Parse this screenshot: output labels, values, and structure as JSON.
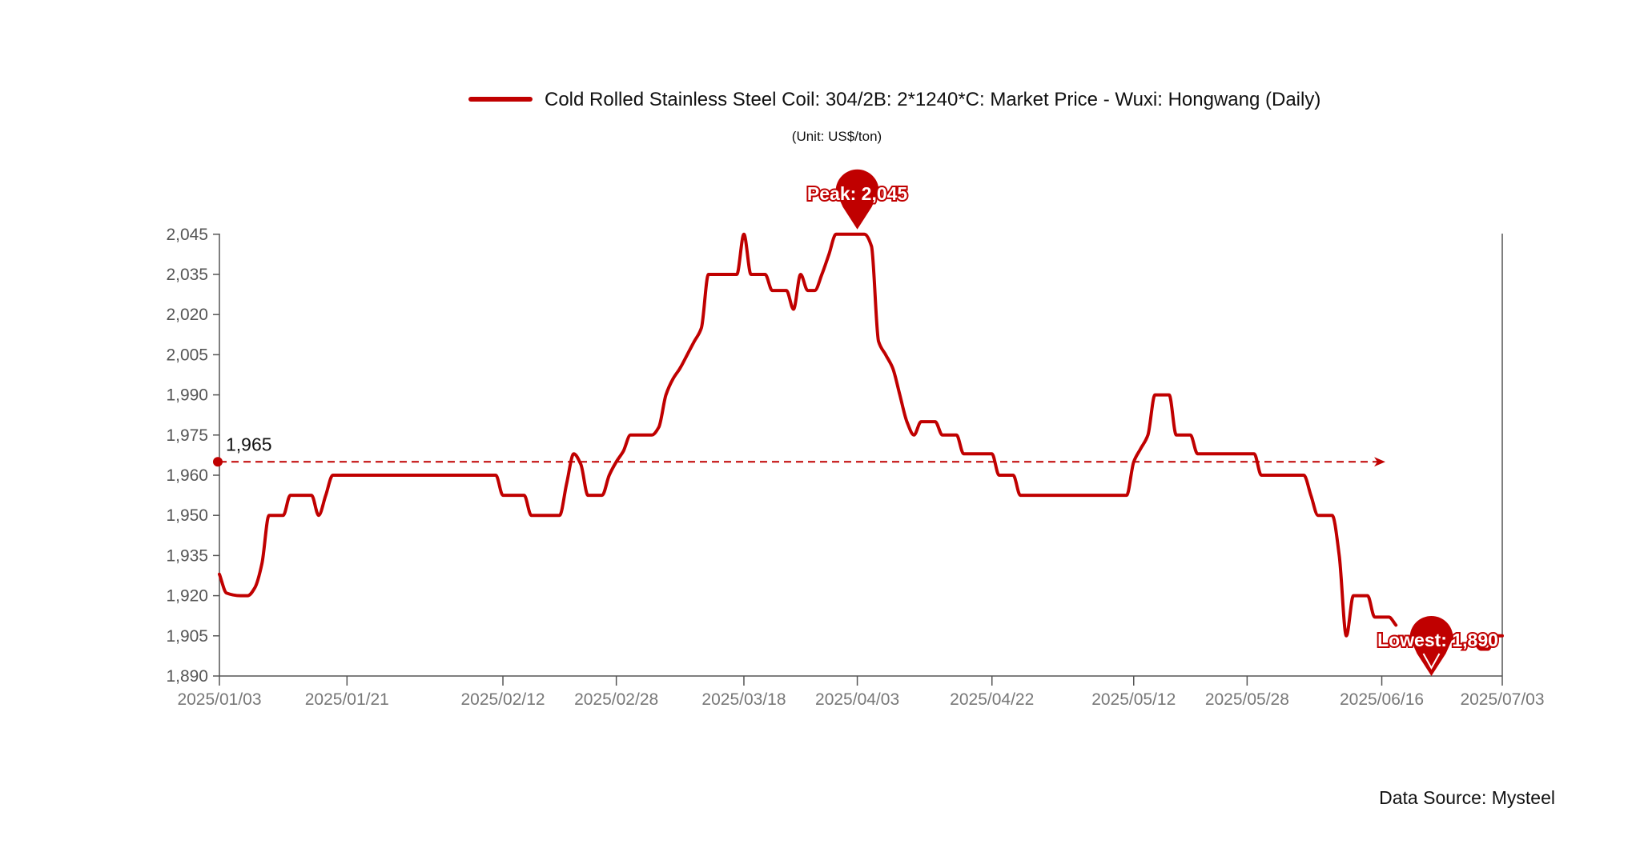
{
  "chart_data": {
    "type": "line",
    "series": [
      {
        "name": "Cold Rolled Stainless Steel Coil: 304/2B: 2*1240*C: Market Price - Wuxi: Hongwang (Daily)",
        "color": "#c00000",
        "points": [
          [
            "2025-01-03",
            1928
          ],
          [
            "2025-01-04",
            1921
          ],
          [
            "2025-01-06",
            1920
          ],
          [
            "2025-01-07",
            1920
          ],
          [
            "2025-01-08",
            1923
          ],
          [
            "2025-01-09",
            1932
          ],
          [
            "2025-01-10",
            1950
          ],
          [
            "2025-01-11",
            1950
          ],
          [
            "2025-01-12",
            1950
          ],
          [
            "2025-01-13",
            1955
          ],
          [
            "2025-01-14",
            1955
          ],
          [
            "2025-01-15",
            1955
          ],
          [
            "2025-01-16",
            1955
          ],
          [
            "2025-01-17",
            1950
          ],
          [
            "2025-01-18",
            1955
          ],
          [
            "2025-01-19",
            1960
          ],
          [
            "2025-01-20",
            1960
          ],
          [
            "2025-01-21",
            1960
          ],
          [
            "2025-01-24",
            1960
          ],
          [
            "2025-01-28",
            1960
          ],
          [
            "2025-02-02",
            1960
          ],
          [
            "2025-02-07",
            1960
          ],
          [
            "2025-02-10",
            1960
          ],
          [
            "2025-02-11",
            1960
          ],
          [
            "2025-02-12",
            1955
          ],
          [
            "2025-02-13",
            1955
          ],
          [
            "2025-02-14",
            1955
          ],
          [
            "2025-02-15",
            1955
          ],
          [
            "2025-02-16",
            1950
          ],
          [
            "2025-02-18",
            1950
          ],
          [
            "2025-02-19",
            1950
          ],
          [
            "2025-02-20",
            1950
          ],
          [
            "2025-02-21",
            1958
          ],
          [
            "2025-02-22",
            1968
          ],
          [
            "2025-02-23",
            1964
          ],
          [
            "2025-02-24",
            1955
          ],
          [
            "2025-02-25",
            1955
          ],
          [
            "2025-02-26",
            1955
          ],
          [
            "2025-02-27",
            1960
          ],
          [
            "2025-02-28",
            1965
          ],
          [
            "2025-03-01",
            1969
          ],
          [
            "2025-03-02",
            1975
          ],
          [
            "2025-03-03",
            1975
          ],
          [
            "2025-03-04",
            1975
          ],
          [
            "2025-03-05",
            1975
          ],
          [
            "2025-03-06",
            1978
          ],
          [
            "2025-03-07",
            1990
          ],
          [
            "2025-03-08",
            1996
          ],
          [
            "2025-03-09",
            2000
          ],
          [
            "2025-03-10",
            2005
          ],
          [
            "2025-03-11",
            2010
          ],
          [
            "2025-03-12",
            2015
          ],
          [
            "2025-03-13",
            2035
          ],
          [
            "2025-03-14",
            2035
          ],
          [
            "2025-03-15",
            2035
          ],
          [
            "2025-03-16",
            2035
          ],
          [
            "2025-03-17",
            2035
          ],
          [
            "2025-03-18",
            2045
          ],
          [
            "2025-03-19",
            2035
          ],
          [
            "2025-03-20",
            2035
          ],
          [
            "2025-03-21",
            2035
          ],
          [
            "2025-03-22",
            2029
          ],
          [
            "2025-03-23",
            2029
          ],
          [
            "2025-03-24",
            2029
          ],
          [
            "2025-03-25",
            2022
          ],
          [
            "2025-03-26",
            2035
          ],
          [
            "2025-03-27",
            2029
          ],
          [
            "2025-03-28",
            2029
          ],
          [
            "2025-03-29",
            2035
          ],
          [
            "2025-03-30",
            2040
          ],
          [
            "2025-03-31",
            2045
          ],
          [
            "2025-04-01",
            2045
          ],
          [
            "2025-04-02",
            2045
          ],
          [
            "2025-04-03",
            2045
          ],
          [
            "2025-04-04",
            2045
          ],
          [
            "2025-04-05",
            2042
          ],
          [
            "2025-04-06",
            2010
          ],
          [
            "2025-04-07",
            2005
          ],
          [
            "2025-04-08",
            2000
          ],
          [
            "2025-04-09",
            1990
          ],
          [
            "2025-04-10",
            1980
          ],
          [
            "2025-04-11",
            1975
          ],
          [
            "2025-04-12",
            1980
          ],
          [
            "2025-04-13",
            1980
          ],
          [
            "2025-04-14",
            1980
          ],
          [
            "2025-04-15",
            1975
          ],
          [
            "2025-04-16",
            1975
          ],
          [
            "2025-04-17",
            1975
          ],
          [
            "2025-04-18",
            1968
          ],
          [
            "2025-04-19",
            1968
          ],
          [
            "2025-04-20",
            1968
          ],
          [
            "2025-04-21",
            1968
          ],
          [
            "2025-04-22",
            1968
          ],
          [
            "2025-04-23",
            1960
          ],
          [
            "2025-04-24",
            1960
          ],
          [
            "2025-04-25",
            1960
          ],
          [
            "2025-04-26",
            1955
          ],
          [
            "2025-04-28",
            1955
          ],
          [
            "2025-05-01",
            1955
          ],
          [
            "2025-05-04",
            1955
          ],
          [
            "2025-05-07",
            1955
          ],
          [
            "2025-05-11",
            1955
          ],
          [
            "2025-05-12",
            1965
          ],
          [
            "2025-05-13",
            1970
          ],
          [
            "2025-05-14",
            1975
          ],
          [
            "2025-05-15",
            1990
          ],
          [
            "2025-05-16",
            1990
          ],
          [
            "2025-05-17",
            1990
          ],
          [
            "2025-05-18",
            1975
          ],
          [
            "2025-05-19",
            1975
          ],
          [
            "2025-05-20",
            1975
          ],
          [
            "2025-05-21",
            1968
          ],
          [
            "2025-05-23",
            1968
          ],
          [
            "2025-05-26",
            1968
          ],
          [
            "2025-05-28",
            1968
          ],
          [
            "2025-05-29",
            1968
          ],
          [
            "2025-05-30",
            1960
          ],
          [
            "2025-06-01",
            1960
          ],
          [
            "2025-06-03",
            1960
          ],
          [
            "2025-06-05",
            1960
          ],
          [
            "2025-06-06",
            1955
          ],
          [
            "2025-06-07",
            1950
          ],
          [
            "2025-06-08",
            1950
          ],
          [
            "2025-06-09",
            1950
          ],
          [
            "2025-06-10",
            1935
          ],
          [
            "2025-06-11",
            1905
          ],
          [
            "2025-06-12",
            1920
          ],
          [
            "2025-06-13",
            1920
          ],
          [
            "2025-06-14",
            1920
          ],
          [
            "2025-06-15",
            1912
          ],
          [
            "2025-06-16",
            1912
          ],
          [
            "2025-06-17",
            1912
          ],
          [
            "2025-06-18",
            1909
          ]
        ],
        "points_after_gap": [
          [
            "2025-06-29",
            1903
          ],
          [
            "2025-06-30",
            1900
          ],
          [
            "2025-07-01",
            1900
          ],
          [
            "2025-07-02",
            1905
          ],
          [
            "2025-07-03",
            1905
          ]
        ]
      }
    ],
    "unit": "(Unit: US$/ton)",
    "y_ticks": [
      "1,890",
      "1,905",
      "1,920",
      "1,935",
      "1,950",
      "1,960",
      "1,975",
      "1,990",
      "2,005",
      "2,020",
      "2,035",
      "2,045"
    ],
    "x_ticks": [
      "2025/01/03",
      "2025/01/21",
      "2025/02/12",
      "2025/02/28",
      "2025/03/18",
      "2025/04/03",
      "2025/04/22",
      "2025/05/12",
      "2025/05/28",
      "2025/06/16",
      "2025/07/03"
    ],
    "reference_line": {
      "value": 1965,
      "label": "1,965"
    },
    "peak": {
      "label": "Peak: 2,045",
      "date": "2025-04-03",
      "value": 2045
    },
    "lowest": {
      "label": "Lowest: 1,890",
      "date": "2025-06-23",
      "value": 1890
    },
    "source": "Data Source: Mysteel",
    "grid": false,
    "legend_position": "top"
  }
}
